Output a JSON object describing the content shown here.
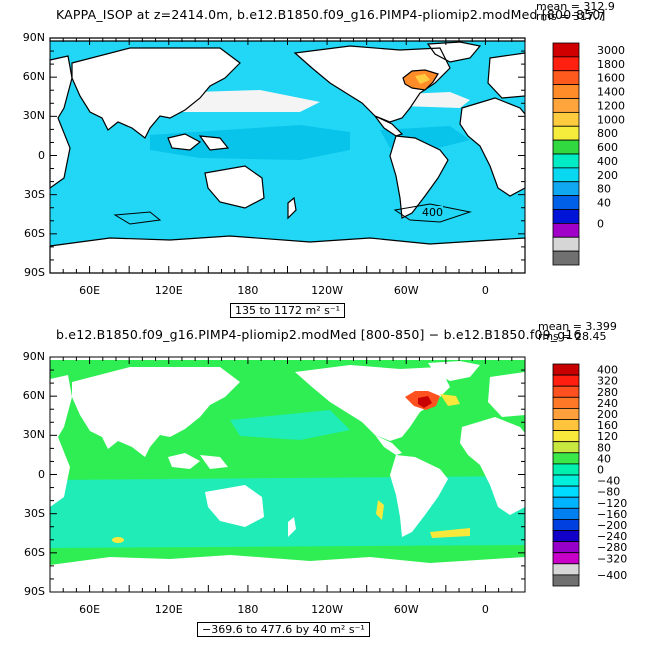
{
  "panels": [
    {
      "title": "KAPPA_ISOP at z=2414.0m, b.e12.B1850.f09_g16.PIMP4-pliomip2.modMed [800-850]",
      "mean_text": "mean = 312.9",
      "rms_text": "rms = 317.7",
      "range_text": "135 to 1172 m² s⁻¹",
      "contour_label": "400",
      "colorbar": {
        "labels": [
          "3000",
          "1800",
          "1600",
          "1400",
          "1200",
          "1000",
          "800",
          "600",
          "400",
          "200",
          "80",
          "40",
          "0"
        ],
        "colors": [
          "#d10000",
          "#ff2010",
          "#ff5a1e",
          "#ff8c28",
          "#ffa53c",
          "#ffcc40",
          "#f6ec3c",
          "#32d840",
          "#00ecc6",
          "#08d8f0",
          "#10a8f0",
          "#0060e8",
          "#0014d8",
          "#a000c8",
          "#d6d6d6",
          "#707070"
        ]
      },
      "ocean_color": "#21d7f5"
    },
    {
      "title": "b.e12.B1850.f09_g16.PIMP4-pliomip2.modMed [800-850] − b.e12.B1850.f09_g16",
      "mean_text": "mean = 3.399",
      "rms_text": "rms = 28.45",
      "range_text": "−369.6 to 477.6 by 40 m² s⁻¹",
      "colorbar": {
        "labels": [
          "400",
          "320",
          "280",
          "240",
          "200",
          "160",
          "120",
          "80",
          "40",
          "0",
          "−40",
          "−80",
          "−120",
          "−160",
          "−200",
          "−240",
          "−280",
          "−320",
          "−400"
        ],
        "colors": [
          "#c80000",
          "#ff1e10",
          "#ff5020",
          "#ff7828",
          "#ffa03c",
          "#ffc43c",
          "#f8e83c",
          "#c8e840",
          "#3ae84a",
          "#00f0b0",
          "#00f0dc",
          "#00dcff",
          "#00b4ff",
          "#0080f0",
          "#0040e0",
          "#1000c8",
          "#9600c8",
          "#c800c8",
          "#d8d8d8",
          "#707070"
        ]
      },
      "ocean_color": "#2fee53",
      "secondary_color": "#1fecb6"
    }
  ],
  "axes": {
    "lat_ticks": [
      "90N",
      "60N",
      "30N",
      "0",
      "30S",
      "60S",
      "90S"
    ],
    "lon_ticks": [
      "60E",
      "120E",
      "180",
      "120W",
      "60W",
      "0"
    ]
  },
  "chart_data": [
    {
      "type": "heatmap",
      "variable": "KAPPA_ISOP",
      "depth_m": 2414.0,
      "units": "m2 s-1",
      "mean": 312.9,
      "rms": 317.7,
      "min": 135,
      "max": 1172,
      "x_axis": {
        "labels": [
          "60E",
          "120E",
          "180",
          "120W",
          "60W",
          "0"
        ],
        "range_deg_east": [
          30,
          390
        ]
      },
      "y_axis": {
        "labels": [
          "90N",
          "60N",
          "30N",
          "0",
          "30S",
          "60S",
          "90S"
        ],
        "range_deg": [
          -90,
          90
        ]
      },
      "contour_levels": [
        0,
        40,
        80,
        200,
        400,
        600,
        800,
        1000,
        1200,
        1400,
        1600,
        1800,
        3000
      ],
      "dominant_band": [
        200,
        400
      ]
    },
    {
      "type": "heatmap",
      "variable": "KAPPA_ISOP difference",
      "units": "m2 s-1",
      "mean": 3.399,
      "rms": 28.45,
      "min": -369.6,
      "max": 477.6,
      "contour_interval": 40,
      "contour_levels": [
        -400,
        -320,
        -280,
        -240,
        -200,
        -160,
        -120,
        -80,
        -40,
        0,
        40,
        80,
        120,
        160,
        200,
        240,
        280,
        320,
        400
      ],
      "dominant_band": [
        0,
        40
      ]
    }
  ]
}
